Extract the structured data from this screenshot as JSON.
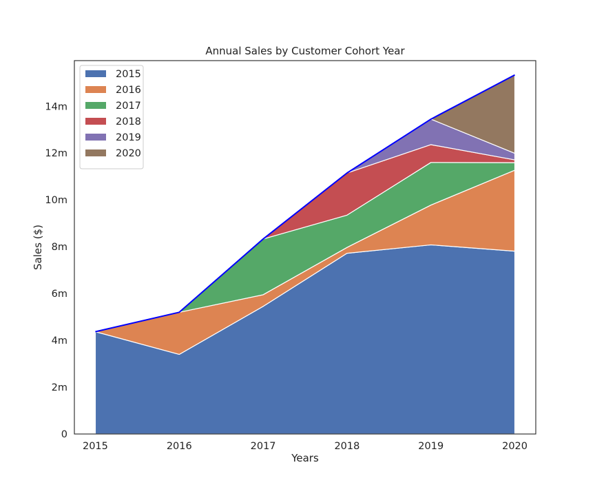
{
  "chart_data": {
    "type": "area",
    "stacked": true,
    "title": "Annual Sales by Customer Cohort Year",
    "xlabel": "Years",
    "ylabel": "Sales ($)",
    "x": [
      2015,
      2016,
      2017,
      2018,
      2019,
      2020
    ],
    "x_tick_labels": [
      "2015",
      "2016",
      "2017",
      "2018",
      "2019",
      "2020"
    ],
    "xlim": [
      2014.75,
      2020.25
    ],
    "ylim": [
      0,
      15.95
    ],
    "y_ticks": [
      0,
      2,
      4,
      6,
      8,
      10,
      12,
      14
    ],
    "y_tick_labels": [
      "0",
      "2m",
      "4m",
      "6m",
      "8m",
      "10m",
      "12m",
      "14m"
    ],
    "units": "millions of $",
    "grid": false,
    "legend_position": "top-left",
    "total_line_color": "#0000ff",
    "series": [
      {
        "name": "2015",
        "color": "#4c72b0",
        "values": [
          4.37,
          3.4,
          5.45,
          7.72,
          8.08,
          7.81
        ]
      },
      {
        "name": "2016",
        "color": "#dd8452",
        "values": [
          0,
          1.8,
          0.5,
          0.25,
          1.7,
          3.46
        ]
      },
      {
        "name": "2017",
        "color": "#55a868",
        "values": [
          0,
          0,
          2.38,
          1.38,
          1.82,
          0.32
        ]
      },
      {
        "name": "2018",
        "color": "#c44e52",
        "values": [
          0,
          0,
          0,
          1.8,
          0.76,
          0.12
        ]
      },
      {
        "name": "2019",
        "color": "#8172b3",
        "values": [
          0,
          0,
          0,
          0,
          1.09,
          0.28
        ]
      },
      {
        "name": "2020",
        "color": "#937860",
        "values": [
          0,
          0,
          0,
          0,
          0,
          3.35
        ]
      }
    ]
  }
}
